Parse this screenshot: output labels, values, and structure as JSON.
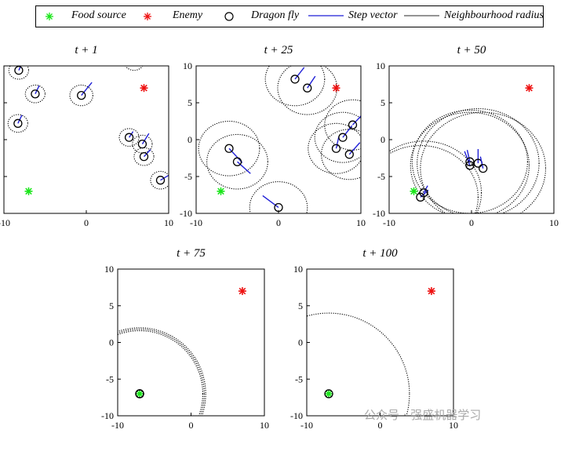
{
  "legend": {
    "food": "Food source",
    "enemy": "Enemy",
    "dragonfly": "Dragon fly",
    "step": "Step vector",
    "radius": "Neighbourhood radius"
  },
  "colors": {
    "food": "#19e619",
    "enemy": "#ee1111",
    "step": "#1f1fd6",
    "dragonfly": "#000000",
    "radius": "#000000"
  },
  "chart_data": [
    {
      "type": "scatter",
      "title": "t + 1",
      "xlim": [
        -10,
        10
      ],
      "ylim": [
        -10,
        10
      ],
      "xticks": [
        "-10",
        "0",
        "10"
      ],
      "yticks": [
        "10",
        "5",
        "0",
        "-5",
        "-10"
      ],
      "food": [
        -7,
        -7
      ],
      "enemy": [
        7,
        7
      ],
      "dragonflies": [
        {
          "x": -8.2,
          "y": 9.4,
          "dx": 0.3,
          "dy": 0.7,
          "r": 1.2
        },
        {
          "x": -6.2,
          "y": 6.2,
          "dx": 0.3,
          "dy": 0.7,
          "r": 1.2
        },
        {
          "x": -8.3,
          "y": 2.2,
          "dx": 0.3,
          "dy": 0.7,
          "r": 1.2
        },
        {
          "x": -0.6,
          "y": 6.0,
          "dx": 0.8,
          "dy": 1.1,
          "r": 1.4
        },
        {
          "x": 5.2,
          "y": 0.3,
          "dx": 0.3,
          "dy": 0.5,
          "r": 1.2
        },
        {
          "x": 6.8,
          "y": -0.6,
          "dx": 0.5,
          "dy": 0.9,
          "r": 1.2
        },
        {
          "x": 7.0,
          "y": -2.3,
          "dx": 0.5,
          "dy": 0.6,
          "r": 1.2
        },
        {
          "x": 9.0,
          "y": -5.5,
          "dx": 0.6,
          "dy": 0.4,
          "r": 1.2
        },
        {
          "x": 5.8,
          "y": 10.6,
          "dx": 0.3,
          "dy": 0.3,
          "r": 1.2
        }
      ]
    },
    {
      "type": "scatter",
      "title": "t + 25",
      "xlim": [
        -10,
        10
      ],
      "ylim": [
        -10,
        10
      ],
      "xticks": [
        "-10",
        "0",
        "10"
      ],
      "yticks": [
        "10",
        "5",
        "0",
        "-5",
        "-10"
      ],
      "food": [
        -7,
        -7
      ],
      "enemy": [
        7,
        7
      ],
      "dragonflies": [
        {
          "x": 2.0,
          "y": 8.2,
          "dx": 0.7,
          "dy": 1.0,
          "r": 3.6
        },
        {
          "x": 3.5,
          "y": 7.0,
          "dx": 0.6,
          "dy": 1.0,
          "r": 3.6
        },
        {
          "x": -6.0,
          "y": -1.2,
          "dx": 1.0,
          "dy": -1.2,
          "r": 3.7
        },
        {
          "x": -5.0,
          "y": -3.0,
          "dx": 1.0,
          "dy": -1.0,
          "r": 3.7
        },
        {
          "x": 0.0,
          "y": -9.2,
          "dx": -1.2,
          "dy": 1.0,
          "r": 3.5
        },
        {
          "x": 7.0,
          "y": -1.2,
          "dx": 0.2,
          "dy": 1.0,
          "r": 3.4
        },
        {
          "x": 7.8,
          "y": 0.3,
          "dx": 0.7,
          "dy": 1.0,
          "r": 3.4
        },
        {
          "x": 9.0,
          "y": 2.0,
          "dx": 1.0,
          "dy": 1.2,
          "r": 3.4
        },
        {
          "x": 8.6,
          "y": -2.0,
          "dx": 0.8,
          "dy": 1.0,
          "r": 3.4
        }
      ]
    },
    {
      "type": "scatter",
      "title": "t + 50",
      "xlim": [
        -10,
        10
      ],
      "ylim": [
        -10,
        10
      ],
      "xticks": [
        "-10",
        "0",
        "10"
      ],
      "yticks": [
        "10",
        "5",
        "0",
        "-5",
        "-10"
      ],
      "food": [
        -7,
        -7
      ],
      "enemy": [
        7,
        7
      ],
      "dragonflies": [
        {
          "x": -0.2,
          "y": -3.5,
          "dx": -0.4,
          "dy": 1.2,
          "r": 7.2
        },
        {
          "x": 0.8,
          "y": -3.2,
          "dx": 0.0,
          "dy": 1.2,
          "r": 7.4
        },
        {
          "x": 1.4,
          "y": -3.9,
          "dx": -0.2,
          "dy": 1.0,
          "r": 7.6
        },
        {
          "x": -0.2,
          "y": -3.0,
          "dx": -0.2,
          "dy": 1.0,
          "r": 7.0
        },
        {
          "x": -6.2,
          "y": -7.8,
          "dx": 0.6,
          "dy": 0.6,
          "r": 7.0
        },
        {
          "x": -5.8,
          "y": -7.2,
          "dx": 0.3,
          "dy": 0.6,
          "r": 7.0
        }
      ]
    },
    {
      "type": "scatter",
      "title": "t + 75",
      "xlim": [
        -10,
        10
      ],
      "ylim": [
        -10,
        10
      ],
      "xticks": [
        "-10",
        "0",
        "10"
      ],
      "yticks": [
        "10",
        "5",
        "0",
        "-5",
        "-10"
      ],
      "food": [
        -7,
        -7
      ],
      "enemy": [
        7,
        7
      ],
      "dragonflies": [
        {
          "x": -7.0,
          "y": -7.0,
          "dx": 0.0,
          "dy": 0.0,
          "r": 8.6
        },
        {
          "x": -7.0,
          "y": -7.0,
          "dx": 0.0,
          "dy": 0.0,
          "r": 8.8
        },
        {
          "x": -7.0,
          "y": -7.0,
          "dx": 0.0,
          "dy": 0.0,
          "r": 9.0
        }
      ]
    },
    {
      "type": "scatter",
      "title": "t + 100",
      "xlim": [
        -10,
        10
      ],
      "ylim": [
        -10,
        10
      ],
      "xticks": [
        "-10",
        "0",
        "10"
      ],
      "yticks": [
        "10",
        "5",
        "0",
        "-5",
        "-10"
      ],
      "food": [
        -7,
        -7
      ],
      "enemy": [
        7,
        7
      ],
      "dragonflies": [
        {
          "x": -7.0,
          "y": -7.0,
          "dx": 0.0,
          "dy": 0.0,
          "r": 11.0
        }
      ]
    }
  ],
  "watermark": "公众号 · 强盛机器学习"
}
